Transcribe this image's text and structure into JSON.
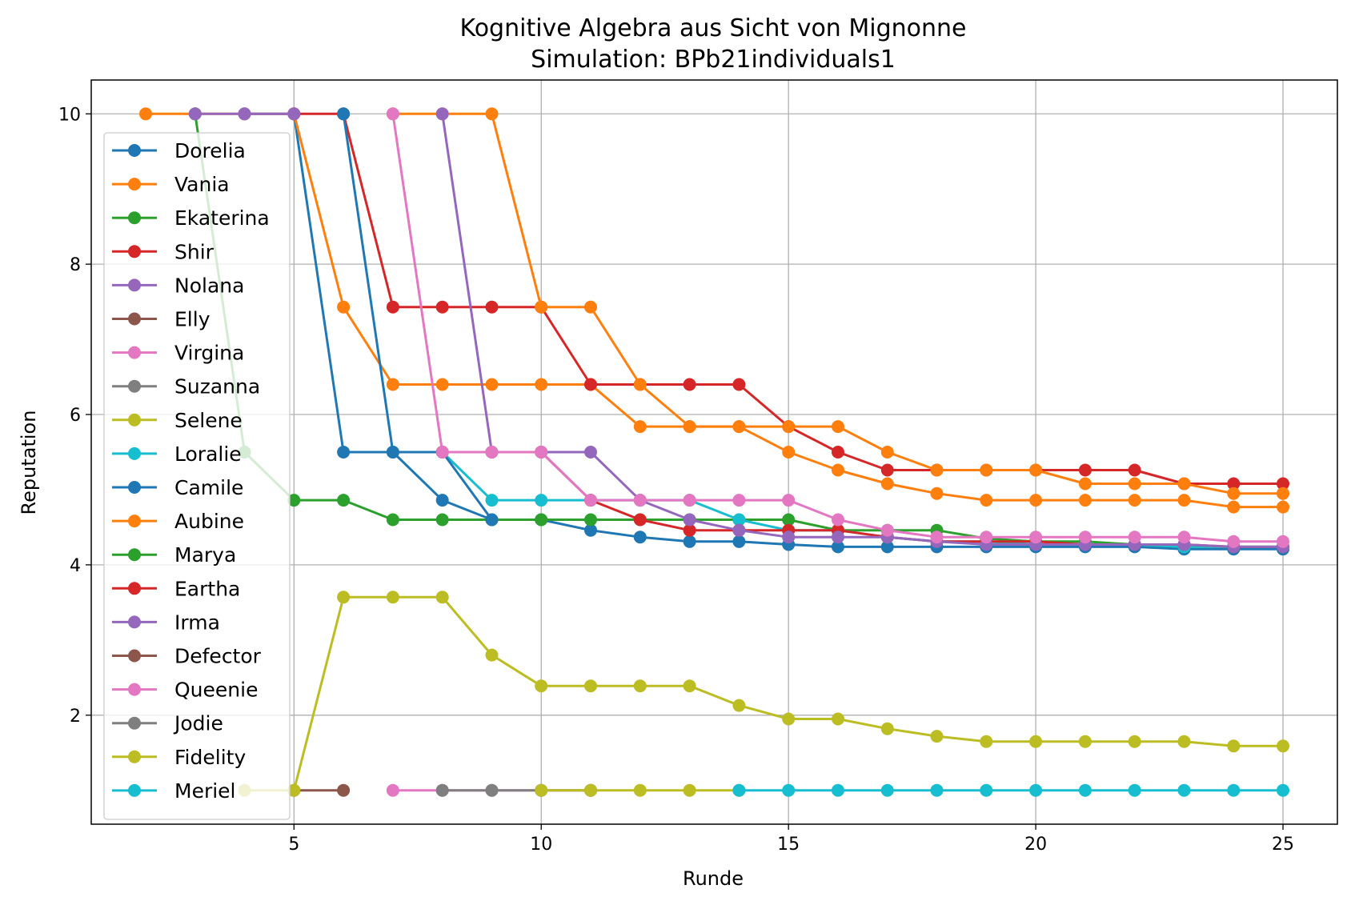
{
  "chart_data": {
    "type": "line",
    "title": "Kognitive Algebra aus Sicht von Mignonne",
    "subtitle": "Simulation: BPb21individuals1",
    "xlabel": "Runde",
    "ylabel": "Reputation",
    "xlim": [
      0.9,
      26.1
    ],
    "ylim": [
      0.55,
      10.45
    ],
    "xticks": [
      5,
      10,
      15,
      20,
      25
    ],
    "yticks": [
      2,
      4,
      6,
      8,
      10
    ],
    "grid": true,
    "legend_position": "upper-left",
    "series": [
      {
        "name": "Dorelia",
        "color": "#1f77b4",
        "x": [
          4,
          5,
          6,
          7,
          8,
          9,
          10,
          11,
          12,
          13,
          14,
          15,
          16,
          17,
          18,
          19,
          20,
          21,
          22,
          23,
          24,
          25
        ],
        "y": [
          10,
          10,
          5.5,
          5.5,
          4.86,
          4.6,
          4.6,
          4.46,
          4.37,
          4.31,
          4.31,
          4.27,
          4.24,
          4.24,
          4.24,
          4.24,
          4.24,
          4.24,
          4.24,
          4.21,
          4.21,
          4.21
        ]
      },
      {
        "name": "Vania",
        "color": "#ff7f0e",
        "x": [
          2,
          3,
          4,
          5,
          6,
          7,
          8,
          9,
          10,
          11,
          12,
          13,
          14,
          15,
          16,
          17,
          18,
          19,
          20,
          21,
          22,
          23,
          24,
          25
        ],
        "y": [
          10,
          10,
          10,
          10,
          7.43,
          6.4,
          6.4,
          6.4,
          6.4,
          6.4,
          5.84,
          5.84,
          5.84,
          5.5,
          5.26,
          5.08,
          4.95,
          4.86,
          4.86,
          4.86,
          4.86,
          4.86,
          4.77,
          4.77
        ]
      },
      {
        "name": "Ekaterina",
        "color": "#2ca02c",
        "x": [
          3,
          4,
          5,
          6,
          7,
          8,
          9,
          10,
          11,
          12,
          13,
          14,
          15,
          16,
          17,
          18,
          19,
          20,
          21,
          22,
          23,
          24,
          25
        ],
        "y": [
          10,
          5.5,
          4.86,
          4.86,
          4.6,
          4.6,
          4.6,
          4.6,
          4.6,
          4.6,
          4.6,
          4.6,
          4.6,
          4.46,
          4.46,
          4.46,
          4.35,
          4.31,
          4.31,
          4.27,
          4.24,
          4.24,
          4.24
        ]
      },
      {
        "name": "Shir",
        "color": "#d62728",
        "x": [
          5,
          6,
          7,
          8,
          9,
          10,
          11,
          12,
          13,
          14,
          15,
          16,
          17,
          18,
          19,
          20,
          21,
          22,
          23,
          24,
          25
        ],
        "y": [
          10,
          10,
          7.43,
          7.43,
          7.43,
          7.43,
          6.4,
          6.4,
          6.4,
          6.4,
          5.84,
          5.5,
          5.26,
          5.26,
          5.26,
          5.26,
          5.26,
          5.26,
          5.08,
          5.08,
          5.08
        ]
      },
      {
        "name": "Nolana",
        "color": "#9467bd",
        "x": [
          3,
          4,
          5
        ],
        "y": [
          10,
          10,
          10
        ]
      },
      {
        "name": "Elly",
        "color": "#8c564b",
        "x": [
          5,
          6
        ],
        "y": [
          1,
          1
        ]
      },
      {
        "name": "Virgina",
        "color": "#e377c2",
        "x": [
          7,
          8,
          9,
          10,
          11
        ],
        "y": [
          1,
          1,
          1,
          1,
          1
        ]
      },
      {
        "name": "Suzanna",
        "color": "#7f7f7f",
        "x": [
          8,
          9,
          10,
          11
        ],
        "y": [
          1,
          1,
          1,
          1
        ]
      },
      {
        "name": "Selene",
        "color": "#bcbd22",
        "x": [
          4,
          5,
          6,
          7,
          8,
          9,
          10,
          11,
          12,
          13,
          14,
          15,
          16,
          17,
          18,
          19,
          20,
          21,
          22,
          23,
          24,
          25
        ],
        "y": [
          1,
          1,
          3.57,
          3.57,
          3.57,
          2.8,
          2.39,
          2.39,
          2.39,
          2.39,
          2.13,
          1.95,
          1.95,
          1.82,
          1.72,
          1.65,
          1.65,
          1.65,
          1.65,
          1.65,
          1.59,
          1.59
        ]
      },
      {
        "name": "Loralie",
        "color": "#17becf",
        "x": [
          7,
          8,
          9,
          10,
          11,
          12,
          13,
          14,
          15,
          16,
          17,
          18,
          19,
          20,
          21,
          22,
          23,
          24,
          25
        ],
        "y": [
          5.5,
          5.5,
          4.86,
          4.86,
          4.86,
          4.86,
          4.86,
          4.6,
          4.46,
          4.46,
          4.37,
          4.31,
          4.31,
          4.27,
          4.27,
          4.27,
          4.24,
          4.24,
          4.24
        ]
      },
      {
        "name": "Camile",
        "color": "#1f77b4",
        "x": [
          6,
          7,
          8,
          9
        ],
        "y": [
          10,
          5.5,
          5.5,
          4.6
        ]
      },
      {
        "name": "Aubine",
        "color": "#ff7f0e",
        "x": [
          7,
          8,
          9,
          10,
          11,
          12,
          13,
          14,
          15,
          16,
          17,
          18,
          19,
          20,
          21,
          22,
          23,
          24,
          25
        ],
        "y": [
          10,
          10,
          10,
          7.43,
          7.43,
          6.4,
          5.84,
          5.84,
          5.84,
          5.84,
          5.5,
          5.26,
          5.26,
          5.26,
          5.08,
          5.08,
          5.08,
          4.95,
          4.95
        ]
      },
      {
        "name": "Marya",
        "color": "#2ca02c",
        "x": [],
        "y": []
      },
      {
        "name": "Eartha",
        "color": "#d62728",
        "x": [
          8,
          9,
          10,
          11,
          12,
          13,
          14,
          15,
          16,
          17,
          18,
          19,
          20,
          21,
          22,
          23,
          24,
          25
        ],
        "y": [
          5.5,
          5.5,
          5.5,
          4.86,
          4.6,
          4.46,
          4.46,
          4.46,
          4.46,
          4.37,
          4.31,
          4.31,
          4.31,
          4.27,
          4.27,
          4.27,
          4.24,
          4.24
        ]
      },
      {
        "name": "Irma",
        "color": "#9467bd",
        "x": [
          8,
          9,
          10,
          11,
          12,
          13,
          14,
          15,
          16,
          17,
          18,
          19,
          20,
          21,
          22,
          23,
          24,
          25
        ],
        "y": [
          10,
          5.5,
          5.5,
          5.5,
          4.86,
          4.6,
          4.46,
          4.37,
          4.37,
          4.37,
          4.31,
          4.27,
          4.27,
          4.27,
          4.27,
          4.27,
          4.24,
          4.24
        ]
      },
      {
        "name": "Defector",
        "color": "#8c564b",
        "x": [],
        "y": []
      },
      {
        "name": "Queenie",
        "color": "#e377c2",
        "x": [
          7,
          8,
          9,
          10,
          11,
          12,
          13,
          14,
          15,
          16,
          17,
          18,
          19,
          20,
          21,
          22,
          23,
          24,
          25
        ],
        "y": [
          10,
          5.5,
          5.5,
          5.5,
          4.86,
          4.86,
          4.86,
          4.86,
          4.86,
          4.6,
          4.46,
          4.37,
          4.37,
          4.37,
          4.37,
          4.37,
          4.37,
          4.31,
          4.31
        ]
      },
      {
        "name": "Jodie",
        "color": "#7f7f7f",
        "x": [],
        "y": []
      },
      {
        "name": "Fidelity",
        "color": "#bcbd22",
        "x": [
          10,
          11,
          12,
          13,
          14
        ],
        "y": [
          1,
          1,
          1,
          1,
          1
        ]
      },
      {
        "name": "Meriel",
        "color": "#17becf",
        "x": [
          14,
          15,
          16,
          17,
          18,
          19,
          20,
          21,
          22,
          23,
          24,
          25
        ],
        "y": [
          1,
          1,
          1,
          1,
          1,
          1,
          1,
          1,
          1,
          1,
          1,
          1
        ]
      }
    ]
  }
}
